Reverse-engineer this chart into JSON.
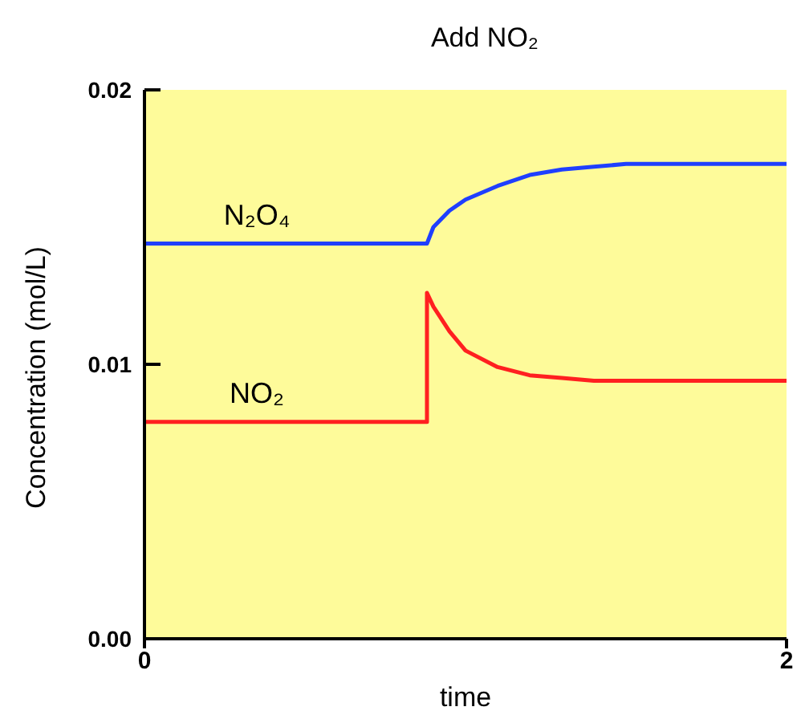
{
  "chart_data": {
    "type": "line",
    "title": "Add NO₂",
    "xlabel": "time",
    "ylabel": "Concentration (mol/L)",
    "xlim": [
      0,
      2
    ],
    "xticks": [
      0,
      2
    ],
    "ylim": [
      0,
      0.02
    ],
    "yticks": [
      {
        "value": 0,
        "label": "0.00"
      },
      {
        "value": 0.01,
        "label": "0.01"
      },
      {
        "value": 0.02,
        "label": "0.02"
      }
    ],
    "grid": false,
    "legend": false,
    "marker": "none",
    "line_style": "solid",
    "series": [
      {
        "name": "N₂O₄",
        "color": "#1f3fff",
        "x": [
          0,
          0.35,
          0.88,
          0.9,
          0.95,
          1.0,
          1.1,
          1.2,
          1.3,
          1.4,
          1.5,
          2
        ],
        "values": [
          0.0144,
          0.0144,
          0.0144,
          0.015,
          0.0156,
          0.016,
          0.0165,
          0.0169,
          0.0171,
          0.0172,
          0.0173,
          0.0173
        ]
      },
      {
        "name": "NO₂",
        "color": "#ff2020",
        "x": [
          0,
          0.35,
          0.88,
          0.88,
          0.9,
          0.95,
          1.0,
          1.1,
          1.2,
          1.3,
          1.4,
          1.5,
          2
        ],
        "values": [
          0.0079,
          0.0079,
          0.0079,
          0.0126,
          0.0121,
          0.0112,
          0.0105,
          0.0099,
          0.0096,
          0.0095,
          0.0094,
          0.0094,
          0.0094
        ]
      }
    ]
  }
}
